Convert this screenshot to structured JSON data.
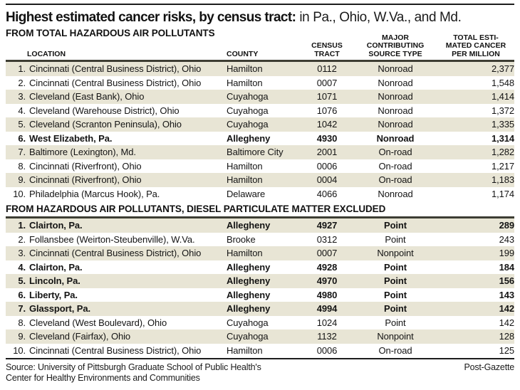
{
  "header": {
    "title_bold": "Highest estimated cancer risks, by census tract:",
    "title_rest": "in Pa., Ohio, W.Va., and Md."
  },
  "columns_display": {
    "location": "LOCATION",
    "county": "COUNTY",
    "census_tract": "CENSUS\nTRACT",
    "source_type": "MAJOR\nCONTRIBUTING\nSOURCE TYPE",
    "total": "TOTAL ESTI-\nMATED CANCER\nPER MILLION"
  },
  "chart_data": [
    {
      "type": "table",
      "title": "FROM TOTAL HAZARDOUS AIR POLLUTANTS",
      "columns": [
        "LOCATION",
        "COUNTY",
        "CENSUS TRACT",
        "MAJOR CONTRIBUTING SOURCE TYPE",
        "TOTAL ESTIMATED CANCER PER MILLION"
      ],
      "rows": [
        {
          "rank": "1.",
          "location": "Cincinnati (Central Business District), Ohio",
          "county": "Hamilton",
          "tract": "0112",
          "source": "Nonroad",
          "total": "2,377",
          "bold": false
        },
        {
          "rank": "2.",
          "location": "Cincinnati (Central Business District), Ohio",
          "county": "Hamilton",
          "tract": "0007",
          "source": "Nonroad",
          "total": "1,548",
          "bold": false
        },
        {
          "rank": "3.",
          "location": "Cleveland (East Bank), Ohio",
          "county": "Cuyahoga",
          "tract": "1071",
          "source": "Nonroad",
          "total": "1,414",
          "bold": false
        },
        {
          "rank": "4.",
          "location": "Cleveland (Warehouse District), Ohio",
          "county": "Cuyahoga",
          "tract": "1076",
          "source": "Nonroad",
          "total": "1,372",
          "bold": false
        },
        {
          "rank": "5.",
          "location": "Cleveland (Scranton Peninsula), Ohio",
          "county": "Cuyahoga",
          "tract": "1042",
          "source": "Nonroad",
          "total": "1,335",
          "bold": false
        },
        {
          "rank": "6.",
          "location": "West Elizabeth, Pa.",
          "county": "Allegheny",
          "tract": "4930",
          "source": "Nonroad",
          "total": "1,314",
          "bold": true
        },
        {
          "rank": "7.",
          "location": "Baltimore (Lexington), Md.",
          "county": "Baltimore City",
          "tract": "2001",
          "source": "On-road",
          "total": "1,282",
          "bold": false
        },
        {
          "rank": "8.",
          "location": "Cincinnati (Riverfront), Ohio",
          "county": "Hamilton",
          "tract": "0006",
          "source": "On-road",
          "total": "1,217",
          "bold": false
        },
        {
          "rank": "9.",
          "location": "Cincinnati (Riverfront), Ohio",
          "county": "Hamilton",
          "tract": "0004",
          "source": "On-road",
          "total": "1,183",
          "bold": false
        },
        {
          "rank": "10.",
          "location": "Philadelphia (Marcus Hook), Pa.",
          "county": "Delaware",
          "tract": "4066",
          "source": "Nonroad",
          "total": "1,174",
          "bold": false
        }
      ]
    },
    {
      "type": "table",
      "title": "FROM HAZARDOUS AIR POLLUTANTS, DIESEL PARTICULATE MATTER EXCLUDED",
      "columns": [
        "LOCATION",
        "COUNTY",
        "CENSUS TRACT",
        "MAJOR CONTRIBUTING SOURCE TYPE",
        "TOTAL ESTIMATED CANCER PER MILLION"
      ],
      "rows": [
        {
          "rank": "1.",
          "location": "Clairton, Pa.",
          "county": "Allegheny",
          "tract": "4927",
          "source": "Point",
          "total": "289",
          "bold": true
        },
        {
          "rank": "2.",
          "location": "Follansbee (Weirton-Steubenville), W.Va.",
          "county": "Brooke",
          "tract": "0312",
          "source": "Point",
          "total": "243",
          "bold": false
        },
        {
          "rank": "3.",
          "location": "Cincinnati (Central Business District), Ohio",
          "county": "Hamilton",
          "tract": "0007",
          "source": "Nonpoint",
          "total": "199",
          "bold": false
        },
        {
          "rank": "4.",
          "location": "Clairton, Pa.",
          "county": "Allegheny",
          "tract": "4928",
          "source": "Point",
          "total": "184",
          "bold": true
        },
        {
          "rank": "5.",
          "location": "Lincoln, Pa.",
          "county": "Allegheny",
          "tract": "4970",
          "source": "Point",
          "total": "156",
          "bold": true
        },
        {
          "rank": "6.",
          "location": "Liberty, Pa.",
          "county": "Allegheny",
          "tract": "4980",
          "source": "Point",
          "total": "143",
          "bold": true
        },
        {
          "rank": "7.",
          "location": "Glassport, Pa.",
          "county": "Allegheny",
          "tract": "4994",
          "source": "Point",
          "total": "142",
          "bold": true
        },
        {
          "rank": "8.",
          "location": "Cleveland (West Boulevard), Ohio",
          "county": "Cuyahoga",
          "tract": "1024",
          "source": "Point",
          "total": "142",
          "bold": false
        },
        {
          "rank": "9.",
          "location": "Cleveland (Fairfax), Ohio",
          "county": "Cuyahoga",
          "tract": "1132",
          "source": "Nonpoint",
          "total": "128",
          "bold": false
        },
        {
          "rank": "10.",
          "location": "Cincinnati (Central Business District), Ohio",
          "county": "Hamilton",
          "tract": "0006",
          "source": "On-road",
          "total": "125",
          "bold": false
        }
      ]
    }
  ],
  "footer": {
    "source_line1": "Source: University of Pittsburgh Graduate School of Public Health's",
    "source_line2": "Center for Healthy Environments and Communities",
    "credit": "Post-Gazette"
  },
  "colors": {
    "row_shade": "#e8e5d5",
    "rule": "#3d3d33",
    "border": "#1c1c1c"
  }
}
